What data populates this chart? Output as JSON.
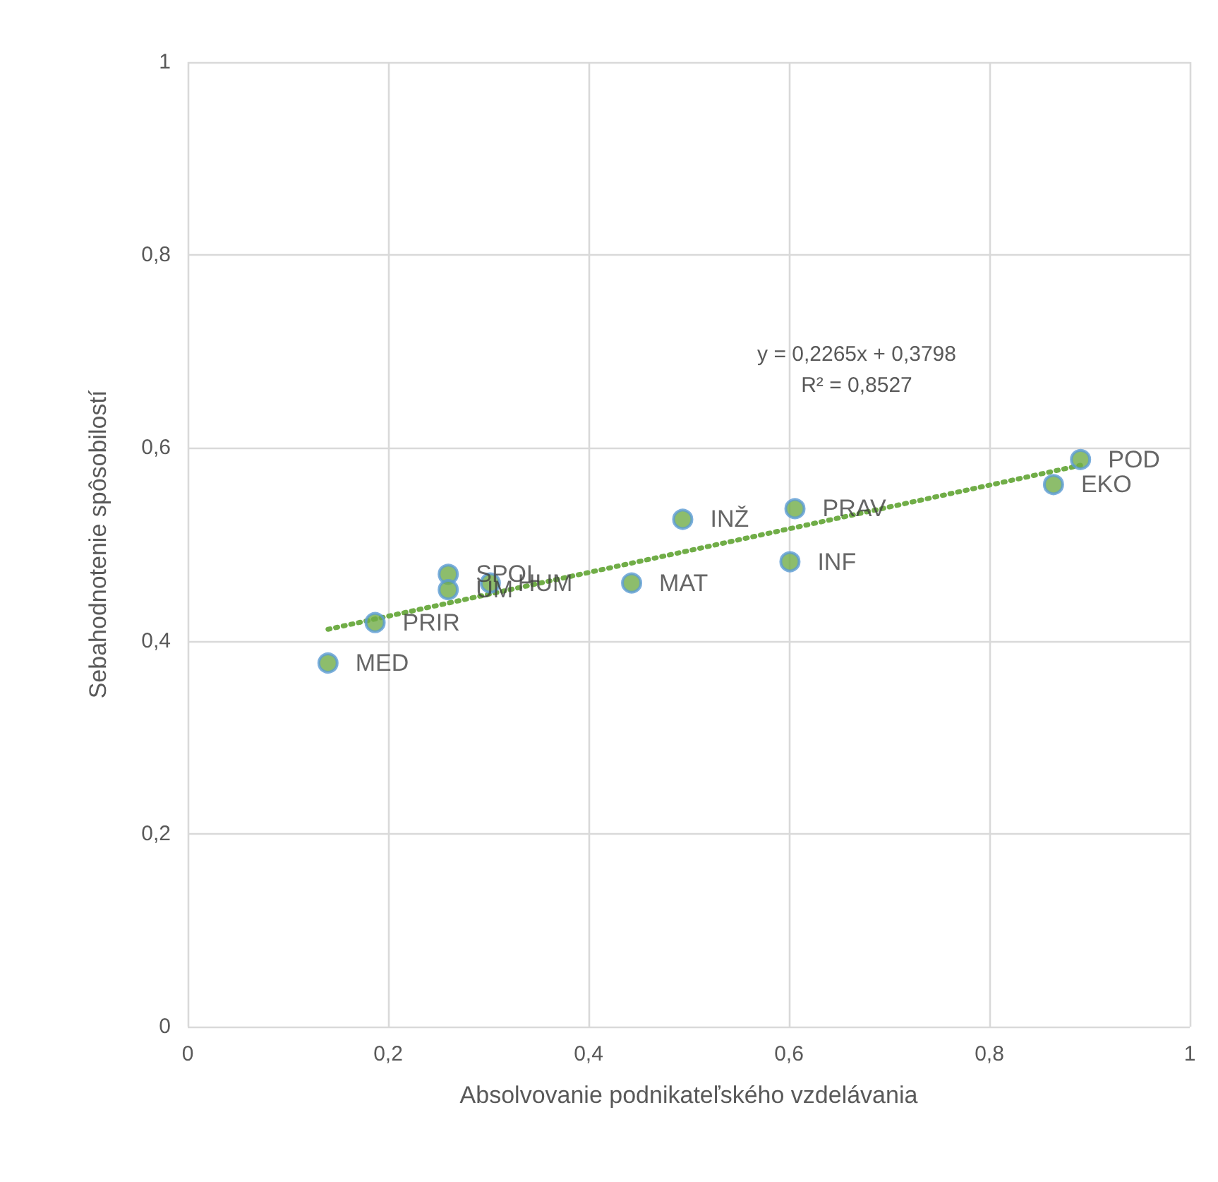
{
  "chart_data": {
    "type": "scatter",
    "xlabel": "Absolvovanie podnikateľského vzdelávania",
    "ylabel": "Sebahodnotenie spôsobilostí",
    "xlim": [
      0,
      1
    ],
    "ylim": [
      0,
      1
    ],
    "xticks": [
      0,
      {
        "value": 0.2,
        "label": "0,2"
      },
      {
        "value": 0.4,
        "label": "0,4"
      },
      {
        "value": 0.6,
        "label": "0,6"
      },
      {
        "value": 0.8,
        "label": "0,8"
      },
      1
    ],
    "yticks": [
      0,
      {
        "value": 0.2,
        "label": "0,2"
      },
      {
        "value": 0.4,
        "label": "0,4"
      },
      {
        "value": 0.6,
        "label": "0,6"
      },
      {
        "value": 0.8,
        "label": "0,8"
      },
      1
    ],
    "grid": true,
    "marker": "circle",
    "series": [
      {
        "color": "#70ad47",
        "x": [
          0.14,
          0.187,
          0.26,
          0.26,
          0.302,
          0.443,
          0.494,
          0.606,
          0.601,
          0.864,
          0.891
        ],
        "values": [
          0.377,
          0.419,
          0.469,
          0.453,
          0.46,
          0.46,
          0.526,
          0.537,
          0.482,
          0.562,
          0.588
        ],
        "value_labels": [
          "MED",
          "PRIR",
          "SPOL",
          "UM",
          "HUM",
          "MAT",
          "INŽ",
          "PRAV",
          "INF",
          "EKO",
          "POD"
        ]
      },
      {
        "type": "line",
        "color": "#70ad47",
        "line_style": "dotted",
        "marker": "none",
        "x": [
          0.14,
          0.891
        ],
        "values": [
          0.412,
          0.582
        ]
      }
    ],
    "annotations": [
      "y = 0,2265x + 0,3798\nR² = 0,8527"
    ]
  }
}
